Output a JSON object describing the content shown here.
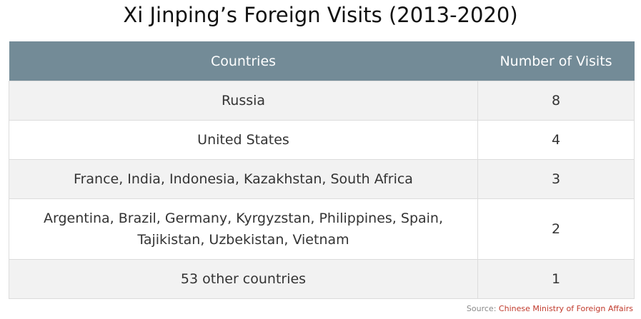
{
  "chart_data": {
    "type": "table",
    "title": "Xi Jinping’s Foreign Visits (2013-2020)",
    "columns": [
      "Countries",
      "Number of Visits"
    ],
    "rows": [
      {
        "countries_lines": [
          "Russia"
        ],
        "visits": "8"
      },
      {
        "countries_lines": [
          "United States"
        ],
        "visits": "4"
      },
      {
        "countries_lines": [
          "France, India, Indonesia, Kazakhstan, South Africa"
        ],
        "visits": "3"
      },
      {
        "countries_lines": [
          "Argentina, Brazil, Germany, Kyrgyzstan, Philippines, Spain,",
          "Tajikistan, Uzbekistan, Vietnam"
        ],
        "visits": "2"
      },
      {
        "countries_lines": [
          "53 other countries"
        ],
        "visits": "1"
      }
    ]
  },
  "source": {
    "label": "Source:",
    "name": "Chinese Ministry of Foreign Affairs"
  },
  "colors": {
    "header_background": "#738b97",
    "header_text": "#ffffff",
    "row_alt_background": "#f2f2f2",
    "source_accent": "#c0392b"
  }
}
